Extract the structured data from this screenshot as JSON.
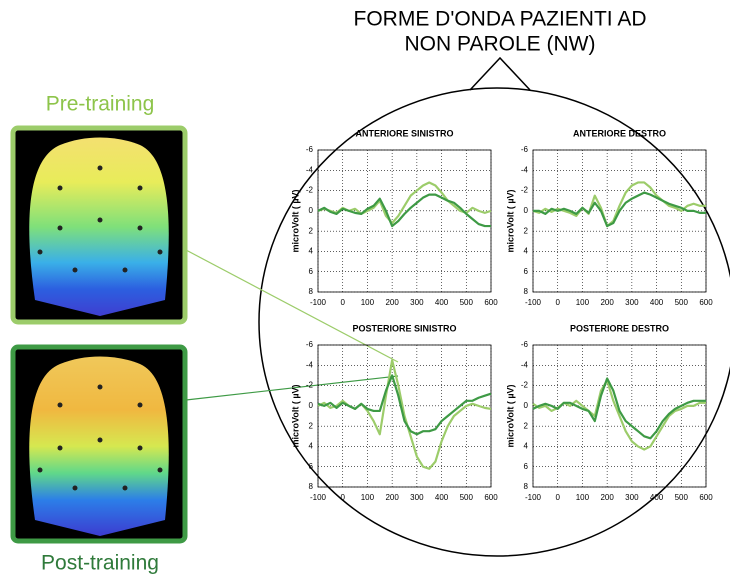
{
  "title": [
    "FORME D'ONDA PAZIENTI AD",
    "NON PAROLE (NW)"
  ],
  "pre_label": "Pre-training",
  "post_label": "Post-training",
  "chart_data": [
    {
      "type": "line",
      "title": "ANTERIORE SINISTRO",
      "y_label": "microVolt ( µV)",
      "x": [
        -100,
        -75,
        -50,
        -25,
        0,
        25,
        50,
        75,
        100,
        125,
        150,
        175,
        200,
        225,
        250,
        275,
        300,
        325,
        350,
        375,
        400,
        425,
        450,
        475,
        500,
        525,
        550,
        575,
        600
      ],
      "series": [
        {
          "color": "#9ccc6a",
          "values": [
            0,
            -0.2,
            0,
            0.2,
            -0.3,
            0,
            -0.2,
            0.3,
            0,
            -0.3,
            -1,
            0.5,
            1.2,
            0.5,
            -0.5,
            -1.5,
            -2,
            -2.5,
            -2.8,
            -2.5,
            -1.8,
            -1,
            -0.5,
            0,
            0.2,
            -0.3,
            0,
            0.2,
            0
          ]
        },
        {
          "color": "#3e9a45",
          "values": [
            0,
            -0.3,
            0.1,
            0.3,
            -0.2,
            0,
            0.2,
            0.3,
            -0.2,
            -0.5,
            -1.2,
            0,
            1.5,
            1,
            0.3,
            -0.3,
            -0.8,
            -1.3,
            -1.6,
            -1.6,
            -1.3,
            -1,
            -0.8,
            -0.3,
            0.3,
            0.8,
            1.3,
            1.5,
            1.5
          ]
        }
      ],
      "xlim": [
        -100,
        600
      ],
      "ylim": [
        -6,
        8
      ],
      "invert_y": true,
      "grid": true,
      "xticks": [
        -100,
        0,
        100,
        200,
        300,
        400,
        500,
        600
      ],
      "yticks": [
        -6,
        -4,
        -2,
        0,
        2,
        4,
        6,
        8
      ]
    },
    {
      "type": "line",
      "title": "ANTERIORE DESTRO",
      "y_label": "microVolt ( µV)",
      "x": [
        -100,
        -75,
        -50,
        -25,
        0,
        25,
        50,
        75,
        100,
        125,
        150,
        175,
        200,
        225,
        250,
        275,
        300,
        325,
        350,
        375,
        400,
        425,
        450,
        475,
        500,
        525,
        550,
        575,
        600
      ],
      "series": [
        {
          "color": "#9ccc6a",
          "values": [
            0,
            0.2,
            -0.2,
            0.1,
            -0.2,
            0,
            0.2,
            0.5,
            -0.3,
            0.3,
            -1.5,
            -0.3,
            1.5,
            1,
            -0.5,
            -1.8,
            -2.5,
            -2.8,
            -2.8,
            -2.3,
            -1.5,
            -1,
            -0.5,
            -0.3,
            0,
            -0.5,
            -0.7,
            -0.5,
            -0.5
          ]
        },
        {
          "color": "#3e9a45",
          "values": [
            0,
            0,
            0.3,
            -0.2,
            0,
            -0.2,
            0,
            0.3,
            -0.3,
            0.2,
            -0.8,
            0,
            1.5,
            1.2,
            0,
            -0.8,
            -1.2,
            -1.5,
            -1.8,
            -1.6,
            -1.3,
            -1,
            -0.7,
            -0.5,
            -0.3,
            0,
            0,
            0.2,
            0.2
          ]
        }
      ],
      "xlim": [
        -100,
        600
      ],
      "ylim": [
        -6,
        8
      ],
      "invert_y": true,
      "grid": true,
      "xticks": [
        -100,
        0,
        100,
        200,
        300,
        400,
        500,
        600
      ],
      "yticks": [
        -6,
        -4,
        -2,
        0,
        2,
        4,
        6,
        8
      ]
    },
    {
      "type": "line",
      "title": "POSTERIORE SINISTRO",
      "y_label": "microVolt ( µV)",
      "x": [
        -100,
        -75,
        -50,
        -25,
        0,
        25,
        50,
        75,
        100,
        125,
        150,
        175,
        200,
        225,
        250,
        275,
        300,
        325,
        350,
        375,
        400,
        425,
        450,
        475,
        500,
        525,
        550,
        575,
        600
      ],
      "series": [
        {
          "color": "#9ccc6a",
          "values": [
            0,
            -0.3,
            0.2,
            0,
            -0.5,
            0,
            0.3,
            -0.2,
            0.5,
            1.5,
            2.8,
            -1,
            -4.5,
            -2,
            1,
            3,
            5,
            6,
            6.2,
            5.5,
            3.5,
            2,
            1,
            0.5,
            0,
            -0.2,
            0,
            0.2,
            0.3
          ]
        },
        {
          "color": "#3e9a45",
          "values": [
            -0.2,
            0,
            -0.3,
            0.2,
            -0.3,
            0,
            0.3,
            -0.2,
            0.3,
            0.5,
            0.5,
            -1.5,
            -3,
            -1,
            1.5,
            2.5,
            2.8,
            2.5,
            2.5,
            2.3,
            1.5,
            1,
            0.5,
            0,
            -0.5,
            -0.5,
            -0.8,
            -1,
            -1.2
          ]
        }
      ],
      "xlim": [
        -100,
        600
      ],
      "ylim": [
        -6,
        8
      ],
      "invert_y": true,
      "grid": true,
      "xticks": [
        -100,
        0,
        100,
        200,
        300,
        400,
        500,
        600
      ],
      "yticks": [
        -6,
        -4,
        -2,
        0,
        2,
        4,
        6,
        8
      ]
    },
    {
      "type": "line",
      "title": "POSTERIORE DESTRO",
      "y_label": "microVolt ( µV)",
      "x": [
        -100,
        -75,
        -50,
        -25,
        0,
        25,
        50,
        75,
        100,
        125,
        150,
        175,
        200,
        225,
        250,
        275,
        300,
        325,
        350,
        375,
        400,
        425,
        450,
        475,
        500,
        525,
        550,
        575,
        600
      ],
      "series": [
        {
          "color": "#9ccc6a",
          "values": [
            -0.2,
            0.2,
            0,
            0.5,
            0.2,
            -0.3,
            0,
            -0.5,
            0,
            0.5,
            1,
            -1.5,
            -2.5,
            -0.5,
            1,
            2.5,
            3.5,
            4,
            4.3,
            4,
            3,
            2,
            1,
            0.5,
            0.3,
            0,
            0,
            -0.3,
            -0.3
          ]
        },
        {
          "color": "#3e9a45",
          "values": [
            0.3,
            0,
            -0.2,
            0,
            0.3,
            -0.3,
            -0.3,
            0,
            0.3,
            0.5,
            1.5,
            -1,
            -2.7,
            -1.5,
            0.5,
            1.5,
            2,
            2.5,
            3,
            3.2,
            2.5,
            1.5,
            0.8,
            0.3,
            0,
            -0.3,
            -0.5,
            -0.5,
            -0.5
          ]
        }
      ],
      "xlim": [
        -100,
        600
      ],
      "ylim": [
        -6,
        8
      ],
      "invert_y": true,
      "grid": true,
      "xticks": [
        -100,
        0,
        100,
        200,
        300,
        400,
        500,
        600
      ],
      "yticks": [
        -6,
        -4,
        -2,
        0,
        2,
        4,
        6,
        8
      ]
    }
  ]
}
